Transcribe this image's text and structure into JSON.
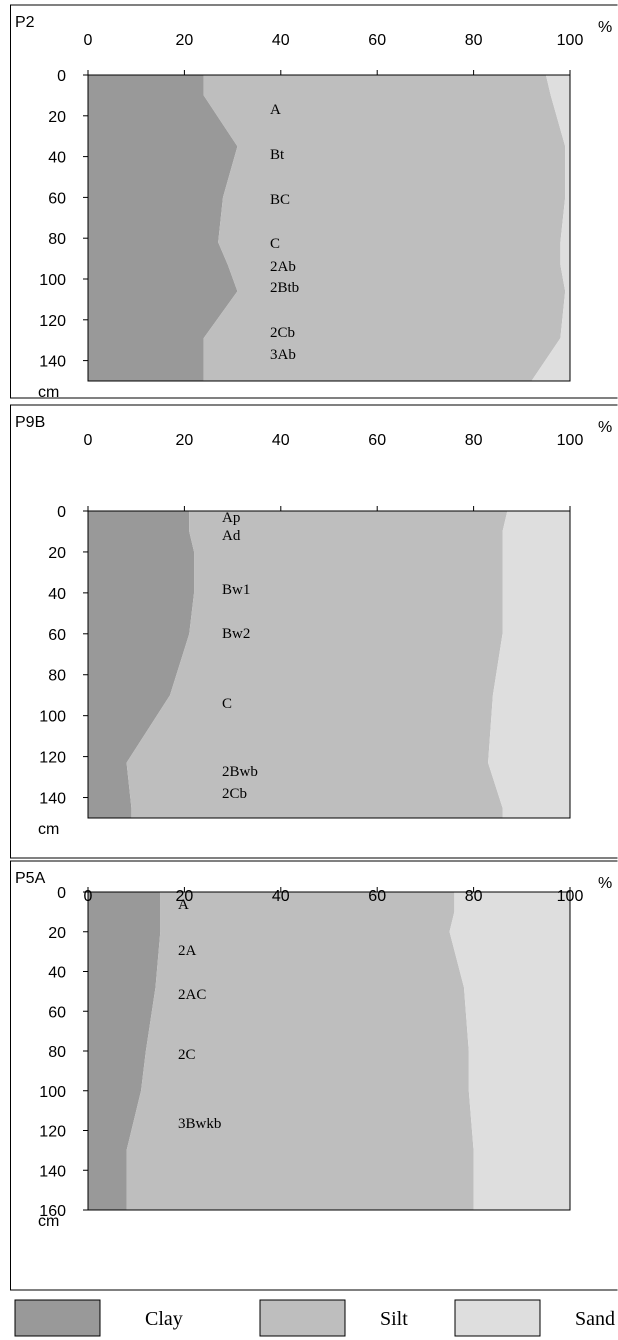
{
  "chart_data": [
    {
      "type": "area",
      "title": "P2",
      "ylabel": "%",
      "xlabel": "cm",
      "x": [
        0,
        10,
        35,
        60,
        82,
        93,
        106,
        129,
        150
      ],
      "series": [
        {
          "name": "Clay",
          "color": "#999999",
          "values": [
            24,
            24,
            31,
            28,
            27,
            29,
            31,
            24,
            24
          ]
        },
        {
          "name": "Silt",
          "color": "#bebebe",
          "values": [
            71,
            72,
            68,
            71,
            71,
            69,
            68,
            74,
            68
          ]
        },
        {
          "name": "Sand",
          "color": "#dedede",
          "values": [
            5,
            4,
            1,
            1,
            2,
            2,
            1,
            2,
            8
          ]
        }
      ],
      "xlim": [
        0,
        150
      ],
      "xticks": [
        0,
        20,
        40,
        60,
        80,
        100,
        120,
        140
      ],
      "ylim": [
        0,
        100
      ],
      "yticks": [
        0,
        20,
        40,
        60,
        80,
        100
      ],
      "annotations": [
        "A",
        "Bt",
        "BC",
        "C",
        "2Ab",
        "2Btb",
        "2Cb",
        "3Ab"
      ]
    },
    {
      "type": "area",
      "title": "P9B",
      "ylabel": "%",
      "xlabel": "cm",
      "x": [
        0,
        10,
        20,
        40,
        60,
        90,
        123,
        145,
        150
      ],
      "series": [
        {
          "name": "Clay",
          "color": "#999999",
          "values": [
            21,
            21,
            22,
            22,
            21,
            17,
            8,
            9,
            9
          ]
        },
        {
          "name": "Silt",
          "color": "#bebebe",
          "values": [
            66,
            65,
            64,
            64,
            65,
            67,
            75,
            77,
            77
          ]
        },
        {
          "name": "Sand",
          "color": "#dedede",
          "values": [
            13,
            14,
            14,
            14,
            14,
            16,
            17,
            14,
            14
          ]
        }
      ],
      "xlim": [
        0,
        150
      ],
      "xticks": [
        0,
        20,
        40,
        60,
        80,
        100,
        120,
        140
      ],
      "ylim": [
        0,
        100
      ],
      "yticks": [
        0,
        20,
        40,
        60,
        80,
        100
      ],
      "annotations": [
        "Ap",
        "Ad",
        "Bw1",
        "Bw2",
        "C",
        "2Bwb",
        "2Cb"
      ]
    },
    {
      "type": "area",
      "title": "P5A",
      "ylabel": "%",
      "xlabel": "cm",
      "x": [
        0,
        10,
        20,
        48,
        80,
        100,
        130,
        160
      ],
      "series": [
        {
          "name": "Clay",
          "color": "#999999",
          "values": [
            15,
            15,
            15,
            14,
            12,
            11,
            8,
            8
          ]
        },
        {
          "name": "Silt",
          "color": "#bebebe",
          "values": [
            61,
            61,
            60,
            64,
            67,
            68,
            72,
            72
          ]
        },
        {
          "name": "Sand",
          "color": "#dedede",
          "values": [
            24,
            24,
            25,
            22,
            21,
            21,
            20,
            20
          ]
        }
      ],
      "xlim": [
        0,
        160
      ],
      "xticks": [
        0,
        20,
        40,
        60,
        80,
        100,
        120,
        140,
        160
      ],
      "ylim": [
        0,
        100
      ],
      "yticks": [
        0,
        20,
        40,
        60,
        80,
        100
      ],
      "annotations": [
        "A",
        "2A",
        "2AC",
        "2C",
        "3Bwkb"
      ]
    }
  ]
}
